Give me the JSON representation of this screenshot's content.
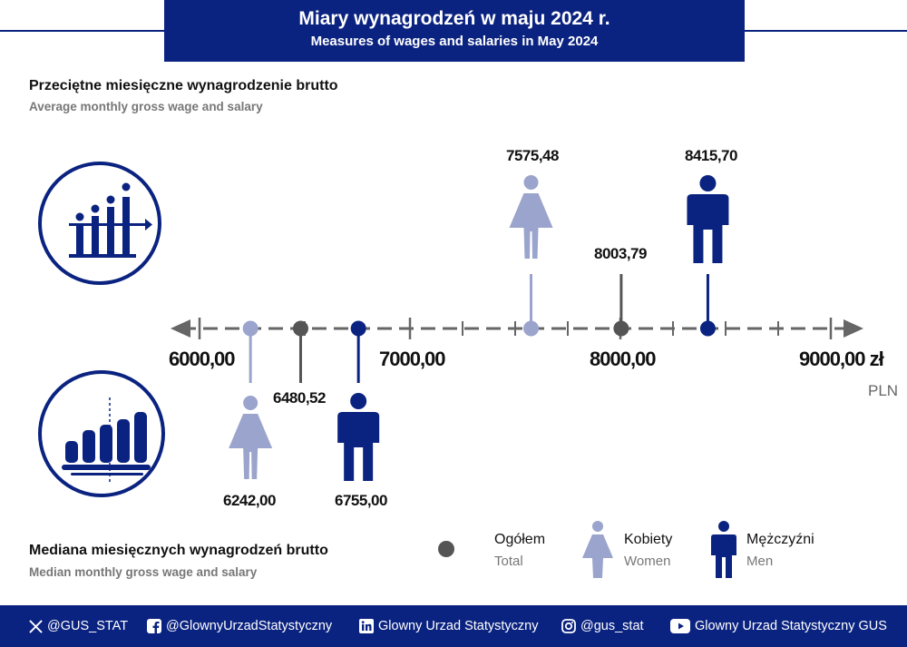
{
  "header": {
    "title": "Miary wynagrodzeń w maju 2024 r.",
    "subtitle": "Measures of wages and salaries in May 2024"
  },
  "average_section": {
    "title": "Przeciętne miesięczne wynagrodzenie brutto",
    "subtitle": "Average monthly gross wage and salary"
  },
  "median_section": {
    "title": "Mediana miesięcznych wynagrodzeń brutto",
    "subtitle": "Median monthly gross wage and salary"
  },
  "axis": {
    "tick_labels": [
      "6000,00",
      "7000,00",
      "8000,00",
      "9000,00 zł"
    ],
    "unit": "PLN"
  },
  "legend": {
    "total": {
      "label": "Ogółem",
      "sub": "Total"
    },
    "women": {
      "label": "Kobiety",
      "sub": "Women"
    },
    "men": {
      "label": "Mężczyźni",
      "sub": "Men"
    }
  },
  "colors": {
    "navy": "#0b2380",
    "women": "#9aa4cc",
    "total": "#555555",
    "axis": "#666666"
  },
  "chart_data": {
    "type": "scatter",
    "xlim": [
      6000,
      9000
    ],
    "ticks": [
      6000,
      7000,
      8000,
      9000
    ],
    "average": [
      {
        "group": "women",
        "value": 7575.48,
        "label": "7575,48"
      },
      {
        "group": "total",
        "value": 8003.79,
        "label": "8003,79"
      },
      {
        "group": "men",
        "value": 8415.7,
        "label": "8415,70"
      }
    ],
    "median": [
      {
        "group": "women",
        "value": 6242.0,
        "label": "6242,00"
      },
      {
        "group": "total",
        "value": 6480.52,
        "label": "6480,52"
      },
      {
        "group": "men",
        "value": 6755.0,
        "label": "6755,00"
      }
    ]
  },
  "footer": {
    "items": [
      {
        "icon": "x-icon",
        "label": "@GUS_STAT"
      },
      {
        "icon": "facebook-icon",
        "label": "@GlownyUrzadStatystyczny"
      },
      {
        "icon": "linkedin-icon",
        "label": "Glowny Urzad Statystyczny"
      },
      {
        "icon": "instagram-icon",
        "label": "@gus_stat"
      },
      {
        "icon": "youtube-icon",
        "label": "Glowny Urzad Statystyczny GUS"
      }
    ]
  }
}
